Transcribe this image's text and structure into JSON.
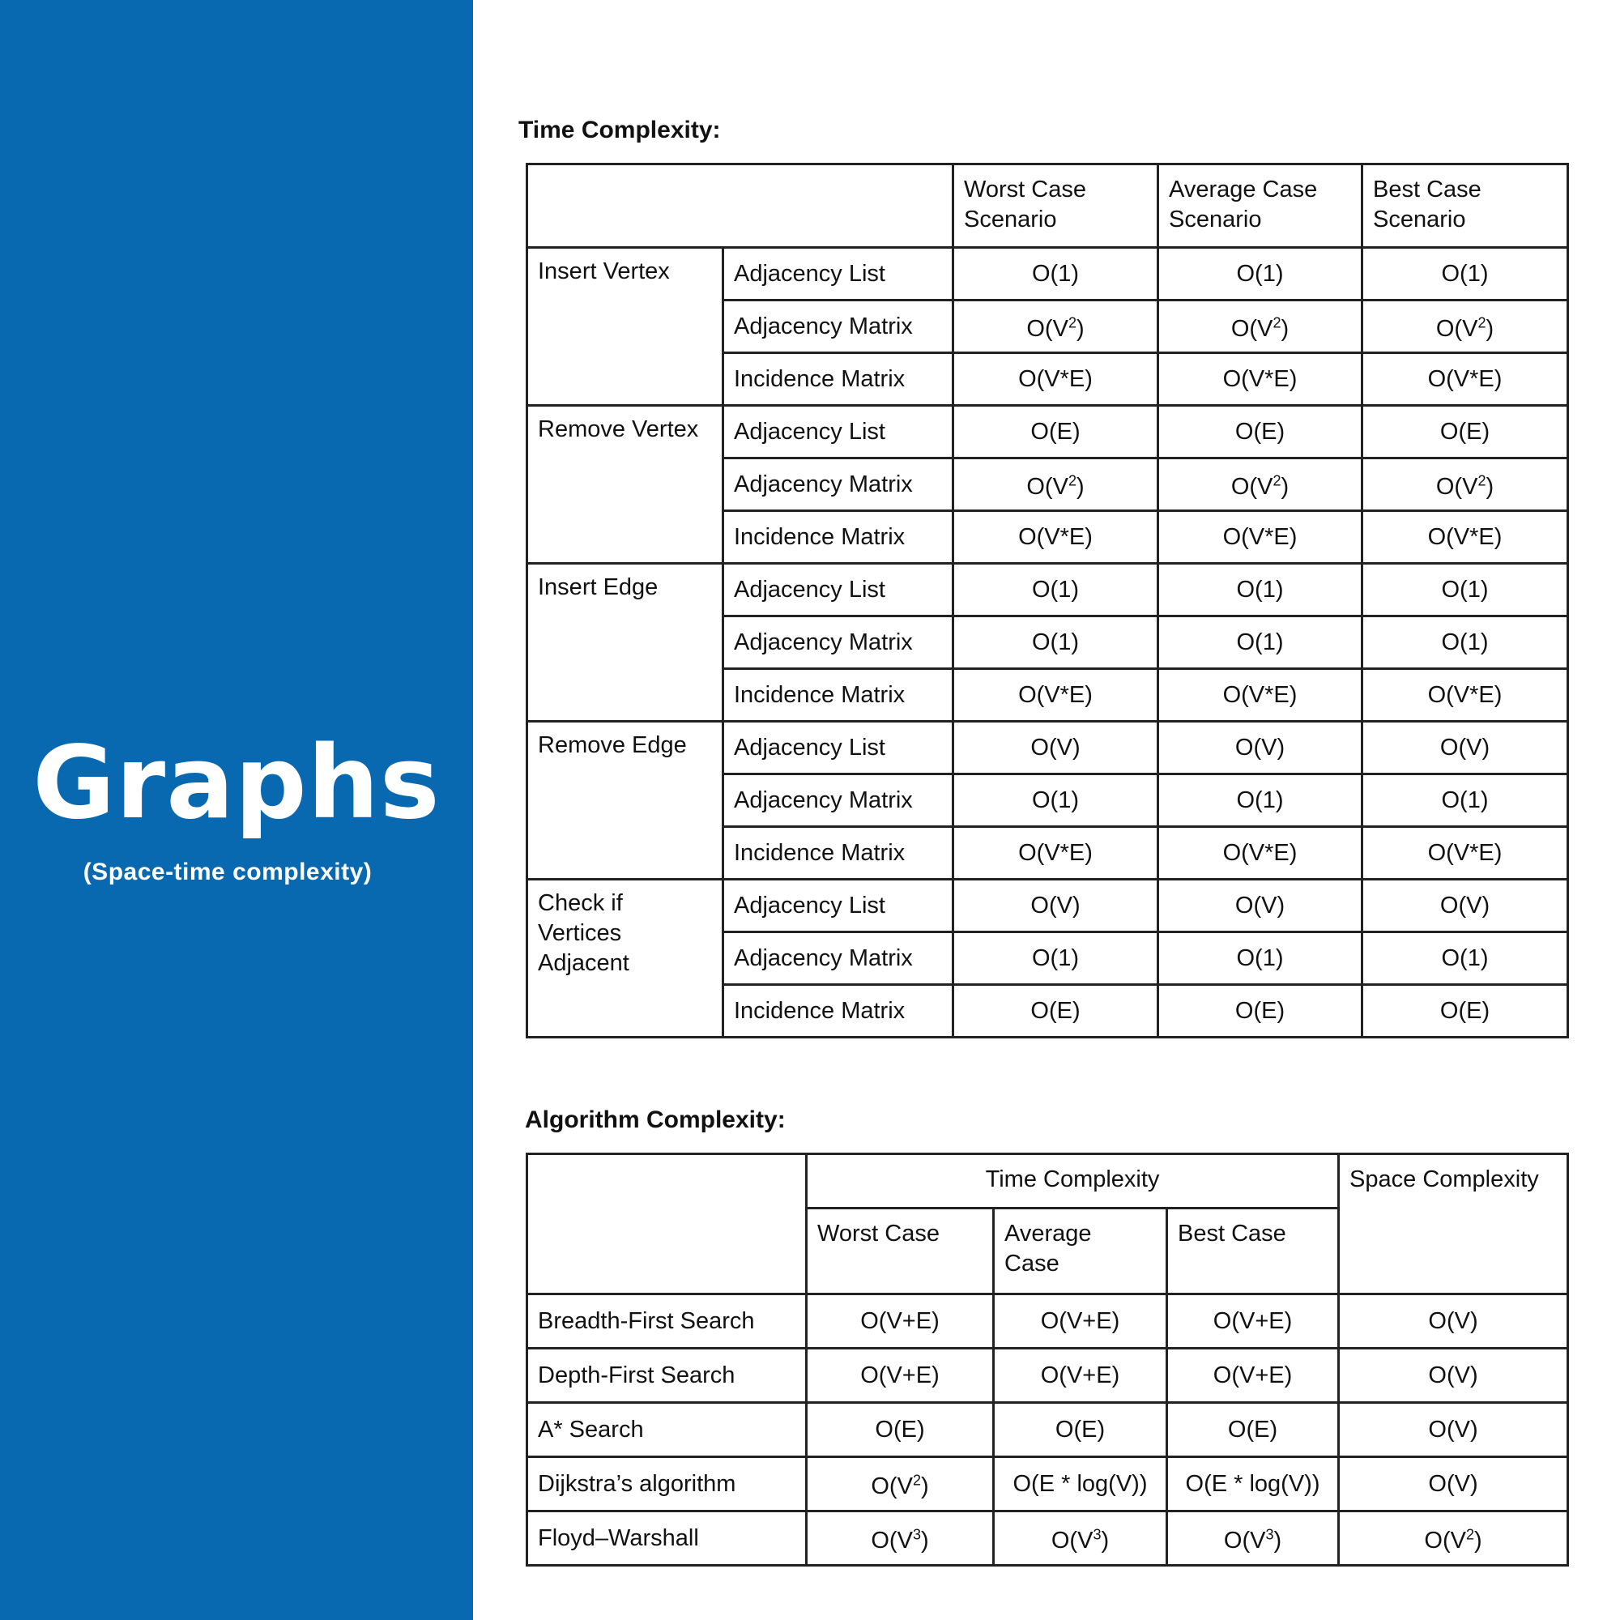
{
  "sidebar": {
    "title": "Graphs",
    "subtitle": "(Space-time complexity)"
  },
  "time_complexity": {
    "heading": "Time Complexity:",
    "columns": [
      [
        "Worst Case",
        "Scenario"
      ],
      [
        "Average Case",
        "Scenario"
      ],
      [
        "Best Case",
        "Scenario"
      ]
    ],
    "groups": [
      {
        "operation": [
          "Insert Vertex"
        ],
        "rows": [
          {
            "structure": "Adjacency List",
            "values": [
              "O(1)",
              "O(1)",
              "O(1)"
            ]
          },
          {
            "structure": "Adjacency Matrix",
            "values": [
              "O(V2)",
              "O(V2)",
              "O(V2)"
            ]
          },
          {
            "structure": "Incidence Matrix",
            "values": [
              "O(V*E)",
              "O(V*E)",
              "O(V*E)"
            ]
          }
        ]
      },
      {
        "operation": [
          "Remove Vertex"
        ],
        "rows": [
          {
            "structure": "Adjacency List",
            "values": [
              "O(E)",
              "O(E)",
              "O(E)"
            ]
          },
          {
            "structure": "Adjacency Matrix",
            "values": [
              "O(V2)",
              "O(V2)",
              "O(V2)"
            ]
          },
          {
            "structure": "Incidence Matrix",
            "values": [
              "O(V*E)",
              "O(V*E)",
              "O(V*E)"
            ]
          }
        ]
      },
      {
        "operation": [
          "Insert Edge"
        ],
        "rows": [
          {
            "structure": "Adjacency List",
            "values": [
              "O(1)",
              "O(1)",
              "O(1)"
            ]
          },
          {
            "structure": "Adjacency Matrix",
            "values": [
              "O(1)",
              "O(1)",
              "O(1)"
            ]
          },
          {
            "structure": "Incidence Matrix",
            "values": [
              "O(V*E)",
              "O(V*E)",
              "O(V*E)"
            ]
          }
        ]
      },
      {
        "operation": [
          "Remove Edge"
        ],
        "rows": [
          {
            "structure": "Adjacency List",
            "values": [
              "O(V)",
              "O(V)",
              "O(V)"
            ]
          },
          {
            "structure": "Adjacency Matrix",
            "values": [
              "O(1)",
              "O(1)",
              "O(1)"
            ]
          },
          {
            "structure": "Incidence Matrix",
            "values": [
              "O(V*E)",
              "O(V*E)",
              "O(V*E)"
            ]
          }
        ]
      },
      {
        "operation": [
          "Check  if",
          "Vertices",
          "Adjacent"
        ],
        "rows": [
          {
            "structure": "Adjacency List",
            "values": [
              "O(V)",
              "O(V)",
              "O(V)"
            ]
          },
          {
            "structure": "Adjacency Matrix",
            "values": [
              "O(1)",
              "O(1)",
              "O(1)"
            ]
          },
          {
            "structure": "Incidence Matrix",
            "values": [
              "O(E)",
              "O(E)",
              "O(E)"
            ]
          }
        ]
      }
    ]
  },
  "algorithm_complexity": {
    "heading": "Algorithm Complexity:",
    "group_header": "Time Complexity",
    "space_header": "Space Complexity",
    "columns": [
      [
        "Worst Case"
      ],
      [
        "Average",
        "Case"
      ],
      [
        "Best Case"
      ]
    ],
    "rows": [
      {
        "name": "Breadth-First Search",
        "values": [
          "O(V+E)",
          "O(V+E)",
          "O(V+E)",
          "O(V)"
        ]
      },
      {
        "name": "Depth-First Search",
        "values": [
          "O(V+E)",
          "O(V+E)",
          "O(V+E)",
          "O(V)"
        ]
      },
      {
        "name": "A* Search",
        "values": [
          "O(E)",
          "O(E)",
          "O(E)",
          "O(V)"
        ]
      },
      {
        "name": "Dijkstra’s algorithm",
        "values": [
          "O(V2)",
          "O(E * log(V))",
          "O(E * log(V))",
          "O(V)"
        ]
      },
      {
        "name": "Floyd–Warshall",
        "values": [
          "O(V3)",
          "O(V3)",
          "O(V3)",
          "O(V2)"
        ]
      }
    ]
  }
}
